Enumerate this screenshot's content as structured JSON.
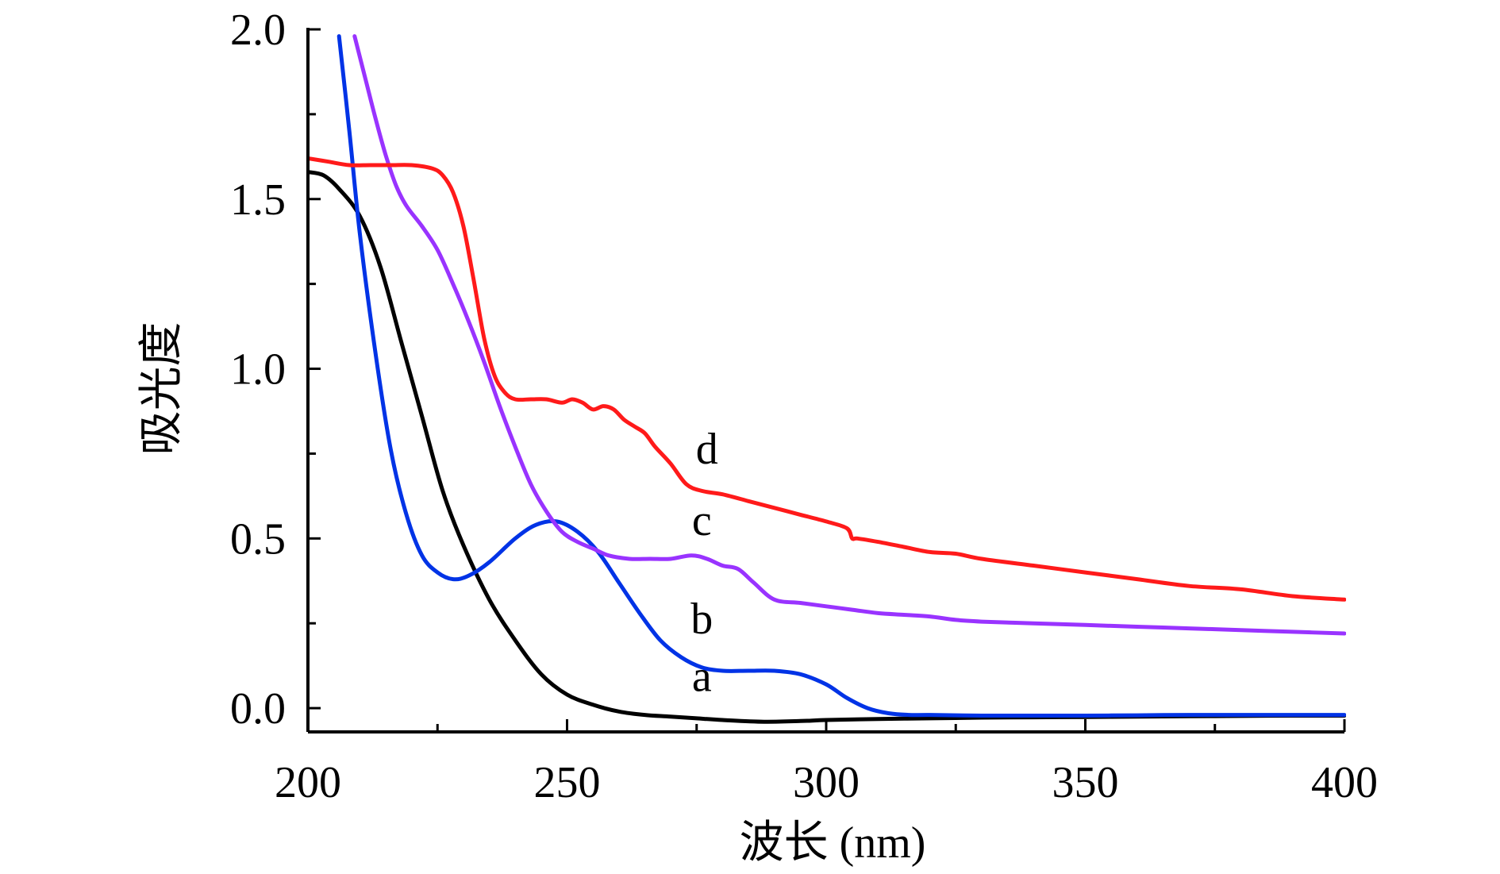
{
  "chart_data": {
    "type": "line",
    "title": "",
    "xlabel": "波长 (nm)",
    "ylabel": "吸光度",
    "xlim": [
      200,
      400
    ],
    "ylim": [
      -0.07,
      2.0
    ],
    "x_major_ticks": [
      200,
      250,
      300,
      350,
      400
    ],
    "x_tick_labels": [
      "200",
      "250",
      "300",
      "350",
      "400"
    ],
    "y_major_ticks": [
      0.0,
      0.5,
      1.0,
      1.5,
      2.0
    ],
    "y_tick_labels": [
      "0.0",
      "0.5",
      "1.0",
      "1.5",
      "2.0"
    ],
    "grid": false,
    "legend": "none",
    "series": [
      {
        "name": "a",
        "color": "#000000",
        "x": [
          200,
          203,
          206,
          210,
          214,
          218,
          222,
          226,
          230,
          235,
          240,
          245,
          250,
          255,
          260,
          265,
          270,
          275,
          280,
          288,
          295,
          300,
          310,
          320,
          330,
          340,
          350,
          360,
          370,
          380,
          390,
          400
        ],
        "y": [
          1.58,
          1.57,
          1.53,
          1.45,
          1.3,
          1.08,
          0.86,
          0.64,
          0.48,
          0.32,
          0.2,
          0.1,
          0.04,
          0.01,
          -0.01,
          -0.02,
          -0.025,
          -0.03,
          -0.035,
          -0.04,
          -0.038,
          -0.035,
          -0.032,
          -0.03,
          -0.028,
          -0.027,
          -0.026,
          -0.025,
          -0.024,
          -0.023,
          -0.022,
          -0.022
        ]
      },
      {
        "name": "b",
        "color": "#0033e6",
        "x": [
          206,
          208,
          210,
          213,
          216,
          219,
          222,
          225,
          228,
          231,
          235,
          240,
          244,
          248,
          252,
          256,
          260,
          264,
          268,
          272,
          276,
          280,
          285,
          290,
          295,
          300,
          304,
          308,
          312,
          316,
          320,
          330,
          340,
          350,
          360,
          370,
          380,
          390,
          400
        ],
        "y": [
          1.98,
          1.7,
          1.4,
          1.05,
          0.76,
          0.57,
          0.45,
          0.4,
          0.38,
          0.39,
          0.43,
          0.5,
          0.54,
          0.55,
          0.52,
          0.46,
          0.37,
          0.28,
          0.2,
          0.15,
          0.12,
          0.11,
          0.11,
          0.11,
          0.1,
          0.07,
          0.03,
          0.0,
          -0.015,
          -0.02,
          -0.02,
          -0.022,
          -0.022,
          -0.022,
          -0.021,
          -0.02,
          -0.02,
          -0.02,
          -0.02
        ]
      },
      {
        "name": "c",
        "color": "#9933ff",
        "x": [
          209,
          211,
          213,
          215,
          217,
          219,
          222,
          225,
          228,
          231,
          234,
          237,
          240,
          243,
          246,
          249,
          252,
          255,
          258,
          262,
          266,
          270,
          274,
          277,
          280,
          283,
          286,
          290,
          295,
          300,
          305,
          310,
          315,
          320,
          325,
          330,
          340,
          350,
          360,
          370,
          380,
          390,
          400
        ],
        "y": [
          1.98,
          1.86,
          1.74,
          1.63,
          1.54,
          1.48,
          1.42,
          1.35,
          1.25,
          1.14,
          1.02,
          0.89,
          0.77,
          0.66,
          0.58,
          0.52,
          0.49,
          0.47,
          0.45,
          0.44,
          0.44,
          0.44,
          0.45,
          0.44,
          0.42,
          0.41,
          0.37,
          0.32,
          0.31,
          0.3,
          0.29,
          0.28,
          0.275,
          0.27,
          0.26,
          0.255,
          0.25,
          0.245,
          0.24,
          0.235,
          0.23,
          0.225,
          0.22
        ]
      },
      {
        "name": "d",
        "color": "#ff1a1a",
        "x": [
          200,
          204,
          208,
          212,
          216,
          220,
          224,
          226,
          228,
          230,
          232,
          234,
          236,
          238,
          240,
          243,
          246,
          249,
          251,
          253,
          255,
          257,
          259,
          261,
          263,
          265,
          267,
          270,
          273,
          276,
          280,
          285,
          290,
          295,
          300,
          304,
          305,
          306,
          310,
          315,
          320,
          325,
          330,
          340,
          350,
          360,
          370,
          380,
          390,
          400
        ],
        "y": [
          1.62,
          1.61,
          1.6,
          1.6,
          1.6,
          1.6,
          1.59,
          1.57,
          1.52,
          1.42,
          1.26,
          1.09,
          0.98,
          0.93,
          0.91,
          0.91,
          0.91,
          0.9,
          0.91,
          0.9,
          0.88,
          0.89,
          0.88,
          0.85,
          0.83,
          0.81,
          0.77,
          0.72,
          0.66,
          0.64,
          0.63,
          0.61,
          0.59,
          0.57,
          0.55,
          0.53,
          0.5,
          0.5,
          0.49,
          0.475,
          0.46,
          0.455,
          0.44,
          0.42,
          0.4,
          0.38,
          0.36,
          0.35,
          0.33,
          0.32
        ]
      }
    ],
    "annotations": [
      {
        "text": "a",
        "series": "a",
        "x": 276,
        "y": 0.05
      },
      {
        "text": "b",
        "series": "b",
        "x": 276,
        "y": 0.22
      },
      {
        "text": "c",
        "series": "c",
        "x": 276,
        "y": 0.51
      },
      {
        "text": "d",
        "series": "d",
        "x": 277,
        "y": 0.72
      }
    ]
  }
}
